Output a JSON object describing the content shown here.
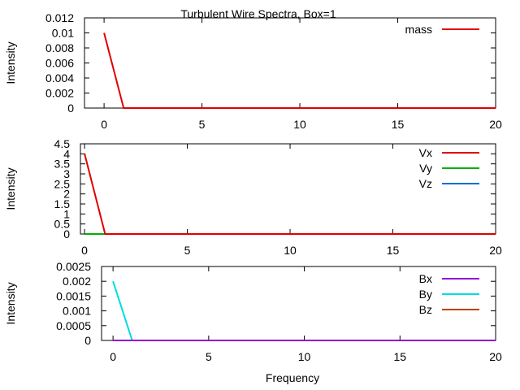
{
  "figure": {
    "title": "Turbulent Wire Spectra, Box=1",
    "xlabel": "Frequency"
  },
  "chart_data": [
    {
      "type": "line",
      "title": "",
      "xlabel": "",
      "ylabel": "Intensity",
      "xlim": [
        -1,
        20
      ],
      "ylim": [
        0,
        0.012
      ],
      "xticks": [
        0,
        5,
        10,
        15,
        20
      ],
      "xtick_labels": [
        "0",
        "5",
        "10",
        "15",
        "20"
      ],
      "yticks": [
        0,
        0.002,
        0.004,
        0.006,
        0.008,
        0.01,
        0.012
      ],
      "ytick_labels": [
        "0",
        "0.002",
        "0.004",
        "0.006",
        "0.008",
        "0.01",
        "0.012"
      ],
      "grid": false,
      "legend": "top-right",
      "series": [
        {
          "name": "mass",
          "color": "#e00000",
          "x": [
            0,
            1,
            2,
            20
          ],
          "y": [
            0.01,
            0,
            0,
            0
          ]
        }
      ]
    },
    {
      "type": "line",
      "title": "",
      "xlabel": "",
      "ylabel": "Intensity",
      "xlim": [
        -0.2,
        20
      ],
      "ylim": [
        0,
        4.5
      ],
      "xticks": [
        0,
        5,
        10,
        15,
        20
      ],
      "xtick_labels": [
        "0",
        "5",
        "10",
        "15",
        "20"
      ],
      "yticks": [
        0,
        0.5,
        1,
        1.5,
        2,
        2.5,
        3,
        3.5,
        4,
        4.5
      ],
      "ytick_labels": [
        "0",
        "0.5",
        "1",
        "1.5",
        "2",
        "2.5",
        "3",
        "3.5",
        "4",
        "4.5"
      ],
      "grid": false,
      "legend": "top-right",
      "series": [
        {
          "name": "Vx",
          "color": "#e00000",
          "x": [
            0,
            1,
            2,
            20
          ],
          "y": [
            4,
            0,
            0,
            0
          ]
        },
        {
          "name": "Vy",
          "color": "#00b000",
          "x": [
            0,
            1,
            2,
            20
          ],
          "y": [
            0,
            0,
            0,
            0
          ]
        },
        {
          "name": "Vz",
          "color": "#0070d0",
          "x": [
            0,
            1,
            2,
            20
          ],
          "y": [
            0,
            0,
            0,
            0
          ]
        }
      ]
    },
    {
      "type": "line",
      "title": "",
      "xlabel": "",
      "ylabel": "Intensity",
      "xlim": [
        -0.6,
        20
      ],
      "ylim": [
        0,
        0.0025
      ],
      "xticks": [
        0,
        5,
        10,
        15,
        20
      ],
      "xtick_labels": [
        "0",
        "5",
        "10",
        "15",
        "20"
      ],
      "yticks": [
        0,
        0.0005,
        0.001,
        0.0015,
        0.002,
        0.0025
      ],
      "ytick_labels": [
        "0",
        "0.0005",
        "0.001",
        "0.0015",
        "0.002",
        "0.0025"
      ],
      "grid": false,
      "legend": "top-right",
      "series": [
        {
          "name": "Bx",
          "color": "#9400d3",
          "x": [
            0,
            1,
            2,
            20
          ],
          "y": [
            0,
            0,
            0,
            0
          ]
        },
        {
          "name": "By",
          "color": "#00dcdc",
          "x": [
            0,
            1,
            2,
            20
          ],
          "y": [
            0.002,
            0,
            0,
            0
          ]
        },
        {
          "name": "Bz",
          "color": "#c04000",
          "x": [
            0,
            1,
            2,
            20
          ],
          "y": [
            0,
            0,
            0,
            0
          ]
        }
      ]
    }
  ]
}
